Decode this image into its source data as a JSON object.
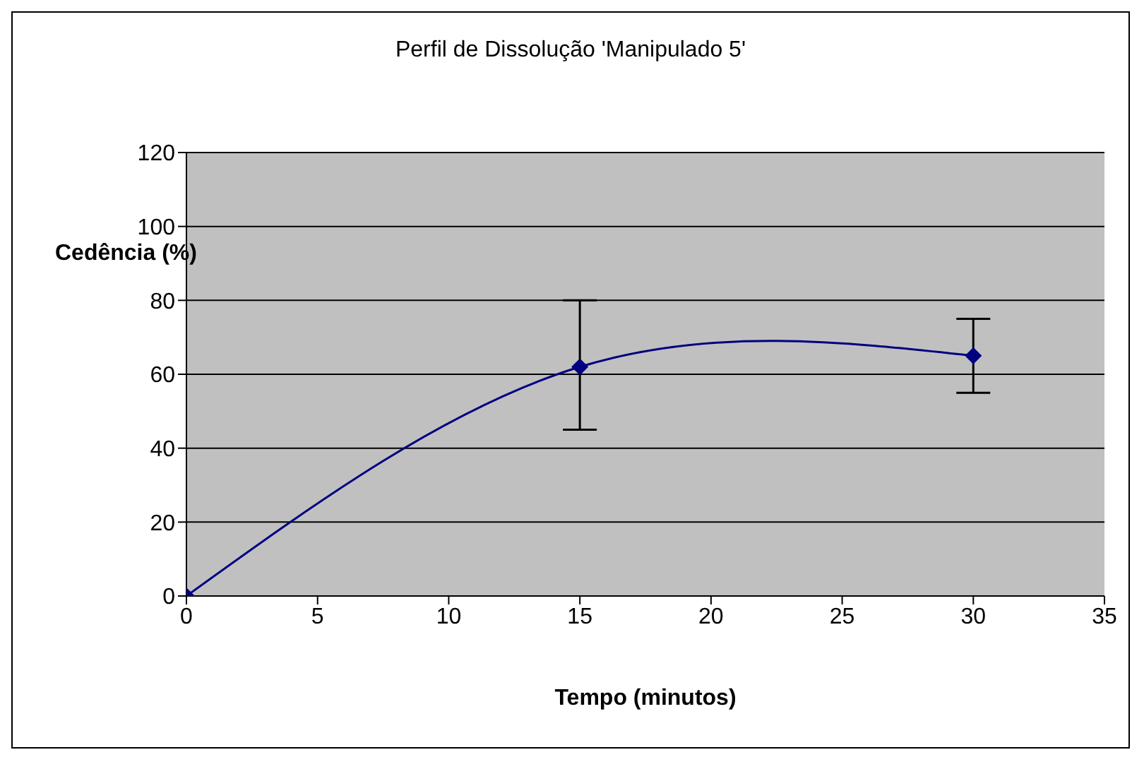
{
  "chart_data": {
    "type": "line",
    "title": "Perfil de Dissolução 'Manipulado 5'",
    "xlabel": "Tempo (minutos)",
    "ylabel": "Cedência (%)",
    "x": [
      0,
      15,
      30
    ],
    "series": [
      {
        "color": "#000080",
        "values": [
          0,
          62,
          65
        ],
        "errors": [
          null,
          [
            45,
            80
          ],
          [
            55,
            75
          ]
        ]
      }
    ],
    "xlim": [
      0,
      35
    ],
    "xticks": [
      0,
      5,
      10,
      15,
      20,
      25,
      30,
      35
    ],
    "ylim": [
      0,
      120
    ],
    "yticks": [
      0,
      20,
      40,
      60,
      80,
      100,
      120
    ],
    "grid": "y",
    "marker": "diamond",
    "line_style": "solid",
    "legend": false
  }
}
